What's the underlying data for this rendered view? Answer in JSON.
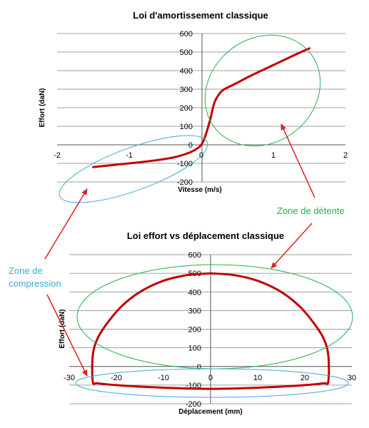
{
  "colors": {
    "curve": "#c00000",
    "detente": "#22b24c",
    "compression": "#3fa9d6",
    "arrow": "#e02020",
    "grid": "#808080"
  },
  "chart_data": [
    {
      "type": "line",
      "title": "Loi d'amortissement classique",
      "xlabel": "Vitesse (m/s)",
      "ylabel": "Effort (daN)",
      "xlim": [
        -2,
        2
      ],
      "ylim": [
        -200,
        600
      ],
      "x_ticks": [
        "-2",
        "-1",
        "0",
        "1",
        "2"
      ],
      "y_ticks": [
        "-200",
        "-100",
        "0",
        "100",
        "200",
        "300",
        "400",
        "500",
        "600"
      ],
      "grid": true,
      "series": [
        {
          "x": [
            -1.5,
            -1.2,
            -0.9,
            -0.6,
            -0.35,
            -0.15,
            -0.05,
            0,
            0.05,
            0.12,
            0.18,
            0.25,
            0.32,
            0.45,
            0.7,
            1.0,
            1.3,
            1.5
          ],
          "y": [
            -120,
            -108,
            -96,
            -82,
            -65,
            -40,
            -18,
            0,
            40,
            130,
            225,
            275,
            300,
            325,
            375,
            430,
            485,
            520
          ]
        }
      ],
      "annotations": [
        {
          "id": "detente",
          "text": "Zone de détente"
        }
      ]
    },
    {
      "type": "line",
      "title": "Loi effort vs déplacement classique",
      "xlabel": "Déplacement (mm)",
      "ylabel": "Effort (daN)",
      "xlim": [
        -30,
        30
      ],
      "ylim": [
        -200,
        600
      ],
      "x_ticks": [
        "-30",
        "-20",
        "-10",
        "0",
        "10",
        "20",
        "30"
      ],
      "y_ticks": [
        "-200",
        "-100",
        "0",
        "100",
        "200",
        "300",
        "400",
        "500",
        "600"
      ],
      "grid": true,
      "series": [
        {
          "x": [
            0,
            5,
            10,
            15,
            19,
            22,
            24,
            25,
            25,
            24,
            20,
            15,
            10,
            5,
            0,
            -5,
            -10,
            -15,
            -20,
            -24,
            -25,
            -25,
            -24,
            -22,
            -19,
            -15,
            -10,
            -5,
            0
          ],
          "y": [
            500,
            490,
            460,
            400,
            320,
            230,
            150,
            60,
            -80,
            -90,
            -100,
            -108,
            -114,
            -118,
            -120,
            -118,
            -114,
            -108,
            -100,
            -90,
            -80,
            60,
            150,
            230,
            320,
            400,
            460,
            490,
            500
          ]
        }
      ],
      "annotations": [
        {
          "id": "compression",
          "text": "Zone de compression"
        }
      ]
    }
  ]
}
